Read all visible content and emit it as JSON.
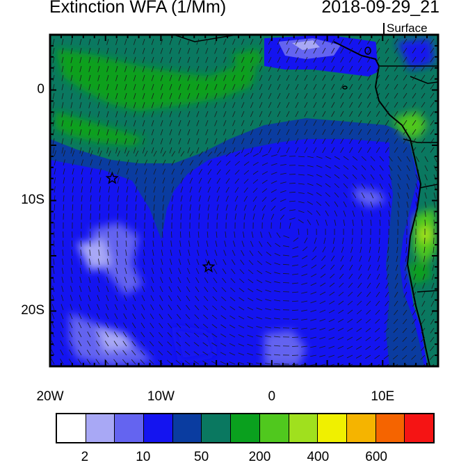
{
  "title": "Extinction WFA (1/Mm)",
  "datetime": "2018-09-29_21",
  "level": "Surface",
  "axes": {
    "x_ticks": [
      {
        "label": "20W",
        "lon": -20
      },
      {
        "label": "10W",
        "lon": -10
      },
      {
        "label": "0",
        "lon": 0
      },
      {
        "label": "10E",
        "lon": 10
      }
    ],
    "y_ticks": [
      {
        "label": "0",
        "lat": 0
      },
      {
        "label": "10S",
        "lat": -10
      },
      {
        "label": "20S",
        "lat": -20
      }
    ],
    "lon_range": [
      -20,
      15
    ],
    "lat_range": [
      -25,
      5
    ]
  },
  "colorbar": {
    "colors": [
      "#ffffff",
      "#a8a8f5",
      "#6464f0",
      "#1414f0",
      "#0a3ca0",
      "#0a7860",
      "#0aa01e",
      "#50c81e",
      "#a0e01e",
      "#f0f000",
      "#f5b400",
      "#f56400",
      "#f51414"
    ],
    "labels": [
      {
        "text": "2",
        "after_box": 1
      },
      {
        "text": "10",
        "after_box": 3
      },
      {
        "text": "50",
        "after_box": 5
      },
      {
        "text": "200",
        "after_box": 7
      },
      {
        "text": "400",
        "after_box": 9
      },
      {
        "text": "600",
        "after_box": 11
      }
    ]
  },
  "markers": [
    {
      "name": "star",
      "lon": -14.4,
      "lat": -8.0
    },
    {
      "name": "star",
      "lon": -5.7,
      "lat": -16.0
    }
  ]
}
